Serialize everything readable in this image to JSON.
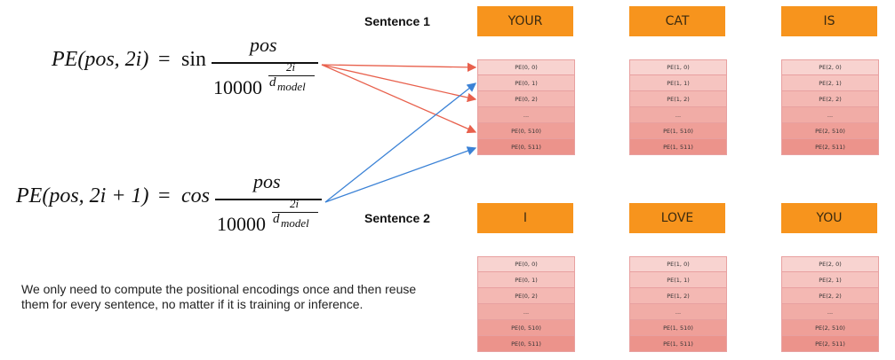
{
  "formula_sin": {
    "lhs": "PE(pos, 2i)",
    "eq": "=",
    "fn": "sin",
    "numerator": "pos",
    "denominator_base": "10000",
    "exponent_num": "2i",
    "exponent_den": "d",
    "exponent_sub": "model"
  },
  "formula_cos": {
    "lhs": "PE(pos, 2i + 1)",
    "eq": "=",
    "fn": "cos",
    "numerator": "pos",
    "denominator_base": "10000",
    "exponent_num": "2i",
    "exponent_den": "d",
    "exponent_sub": "model"
  },
  "sentences": [
    {
      "label": "Sentence 1",
      "words": [
        {
          "word": "YOUR",
          "cells": [
            "PE(0, 0)",
            "PE(0, 1)",
            "PE(0, 2)",
            "...",
            "PE(0, 510)",
            "PE(0, 511)"
          ]
        },
        {
          "word": "CAT",
          "cells": [
            "PE(1, 0)",
            "PE(1, 1)",
            "PE(1, 2)",
            "...",
            "PE(1, 510)",
            "PE(1, 511)"
          ]
        },
        {
          "word": "IS",
          "cells": [
            "PE(2, 0)",
            "PE(2, 1)",
            "PE(2, 2)",
            "...",
            "PE(2, 510)",
            "PE(2, 511)"
          ]
        }
      ]
    },
    {
      "label": "Sentence 2",
      "words": [
        {
          "word": "I",
          "cells": [
            "PE(0, 0)",
            "PE(0, 1)",
            "PE(0, 2)",
            "...",
            "PE(0, 510)",
            "PE(0, 511)"
          ]
        },
        {
          "word": "LOVE",
          "cells": [
            "PE(1, 0)",
            "PE(1, 1)",
            "PE(1, 2)",
            "...",
            "PE(1, 510)",
            "PE(1, 511)"
          ]
        },
        {
          "word": "YOU",
          "cells": [
            "PE(2, 0)",
            "PE(2, 1)",
            "PE(2, 2)",
            "...",
            "PE(2, 510)",
            "PE(2, 511)"
          ]
        }
      ]
    }
  ],
  "note": "We only need to compute the positional encodings once and then reuse them for every sentence, no matter if it is training or inference.",
  "colors": {
    "word_box": "#f7941d",
    "sin_arrow": "#e8604c",
    "cos_arrow": "#3b82d6"
  }
}
